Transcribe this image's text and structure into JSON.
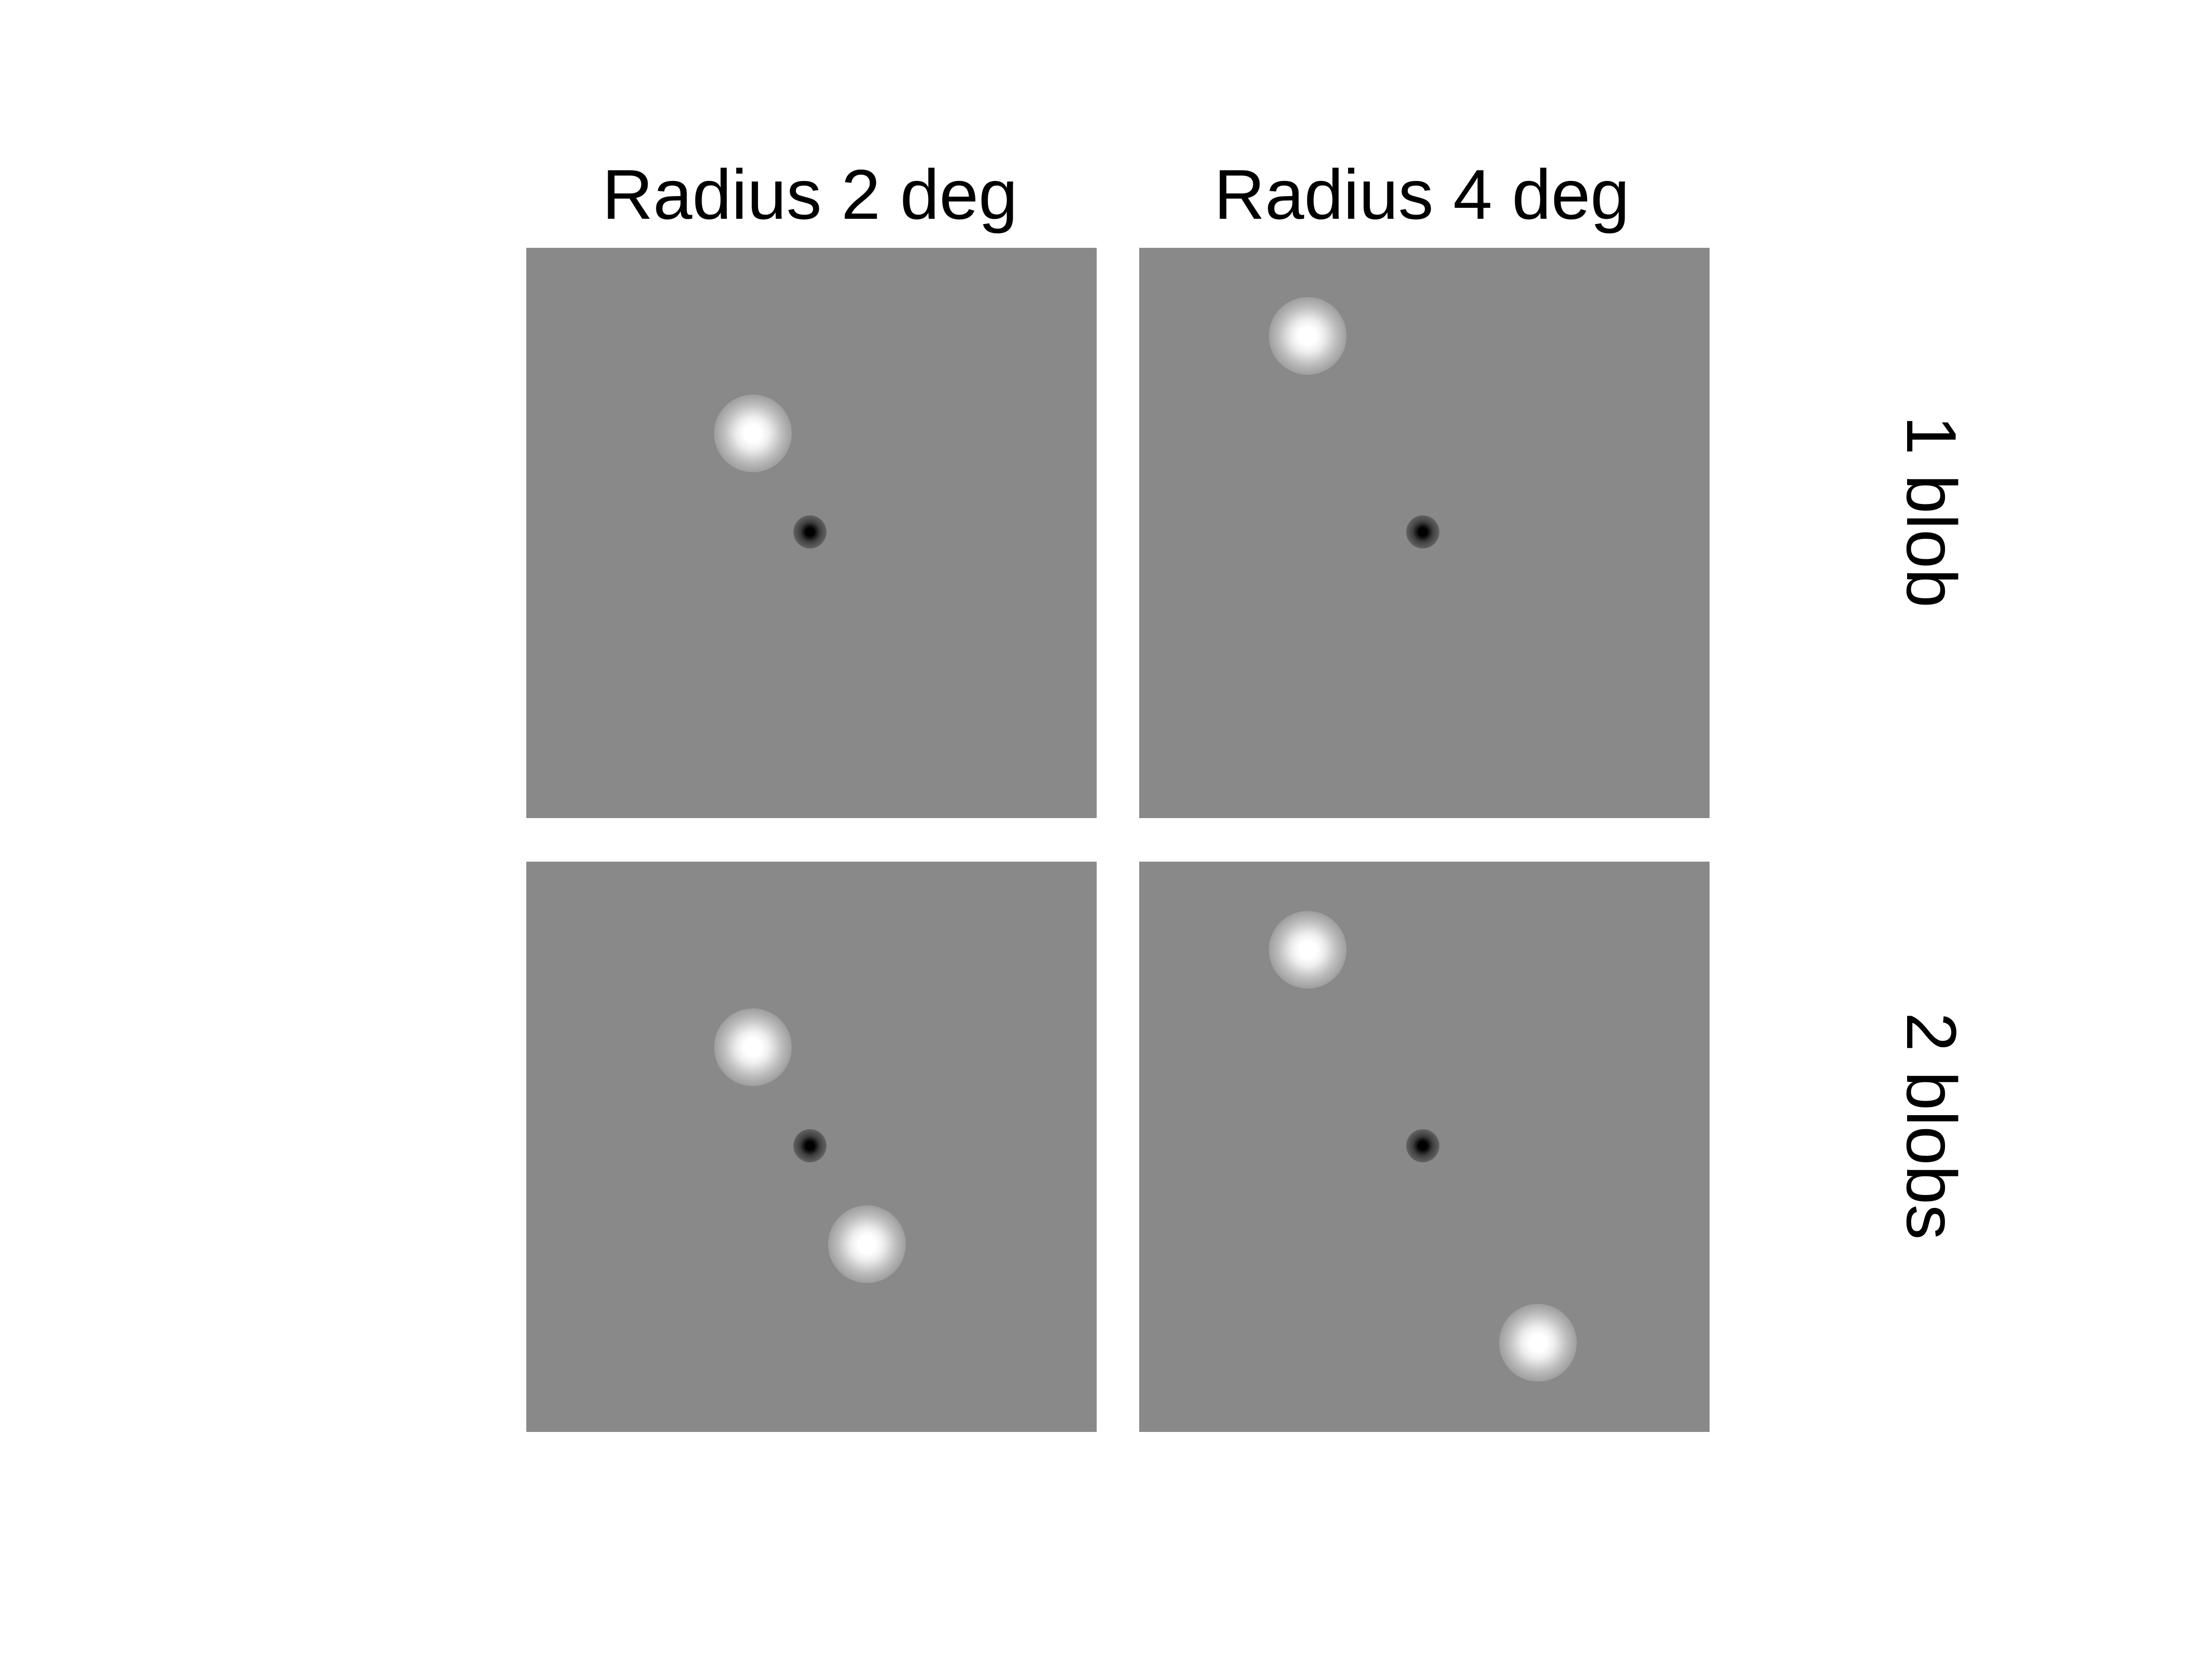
{
  "columns": [
    {
      "label": "Radius 2 deg"
    },
    {
      "label": "Radius 4 deg"
    }
  ],
  "rows": [
    {
      "label": "1 blob"
    },
    {
      "label": "2 blobs"
    }
  ],
  "colors": {
    "panel_background": "#898989",
    "blob": "#ffffff",
    "fixation_dot": "#000000",
    "page_background": "#ffffff"
  },
  "panels": [
    {
      "radius_deg": 2,
      "blob_count": 1
    },
    {
      "radius_deg": 4,
      "blob_count": 1
    },
    {
      "radius_deg": 2,
      "blob_count": 2
    },
    {
      "radius_deg": 4,
      "blob_count": 2
    }
  ]
}
